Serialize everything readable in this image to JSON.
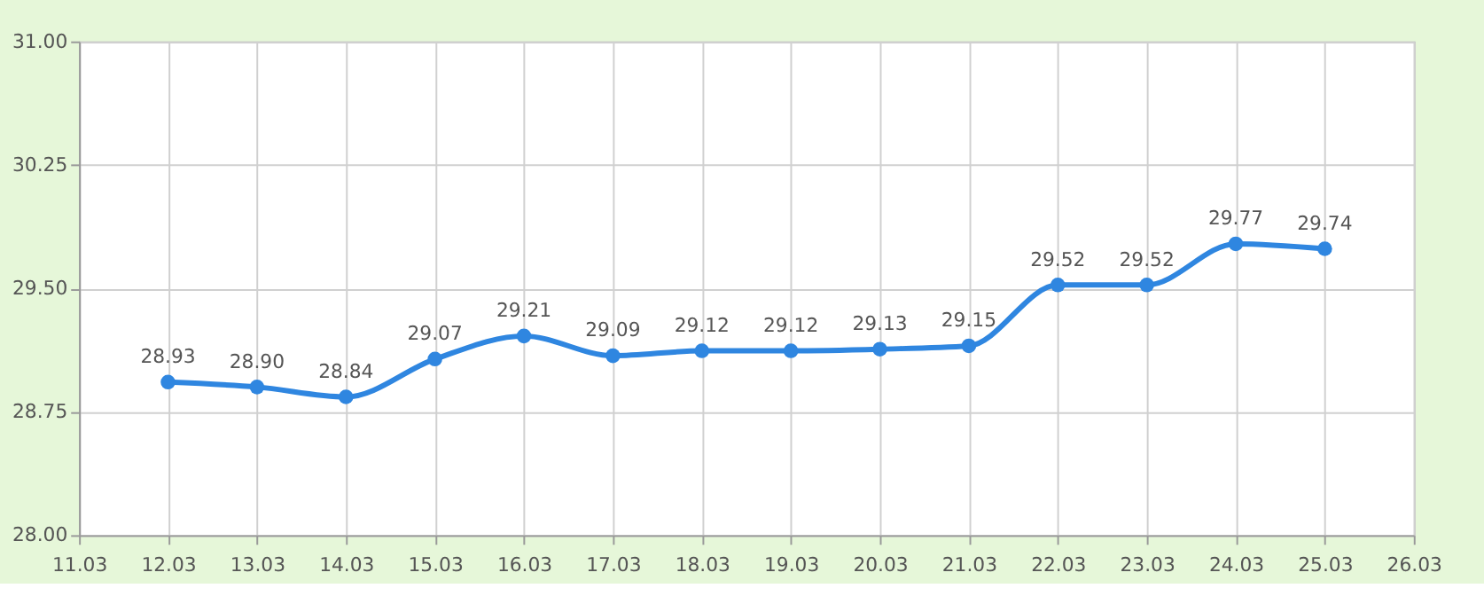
{
  "chart_data": {
    "type": "line",
    "categories": [
      "11.03",
      "12.03",
      "13.03",
      "14.03",
      "15.03",
      "16.03",
      "17.03",
      "18.03",
      "19.03",
      "20.03",
      "21.03",
      "22.03",
      "23.03",
      "24.03",
      "25.03",
      "26.03"
    ],
    "series": [
      {
        "color": "#2f86e0",
        "values": [
          null,
          28.93,
          28.9,
          28.84,
          29.07,
          29.21,
          29.09,
          29.12,
          29.12,
          29.13,
          29.15,
          29.52,
          29.52,
          29.77,
          29.74,
          null
        ],
        "value_labels": [
          null,
          "28.93",
          "28.90",
          "28.84",
          "29.07",
          "29.21",
          "29.09",
          "29.12",
          "29.12",
          "29.13",
          "29.15",
          "29.52",
          "29.52",
          "29.77",
          "29.74",
          null
        ]
      }
    ],
    "ylim": [
      28,
      31
    ],
    "yticks": [
      {
        "value": 28,
        "label": "28.00"
      },
      {
        "value": 28.75,
        "label": "28.75"
      },
      {
        "value": 29.5,
        "label": "29.50"
      },
      {
        "value": 30.25,
        "label": "30.25"
      },
      {
        "value": 31,
        "label": "31.00"
      }
    ],
    "grid": true,
    "marker": "circle",
    "line_style": "solid"
  }
}
